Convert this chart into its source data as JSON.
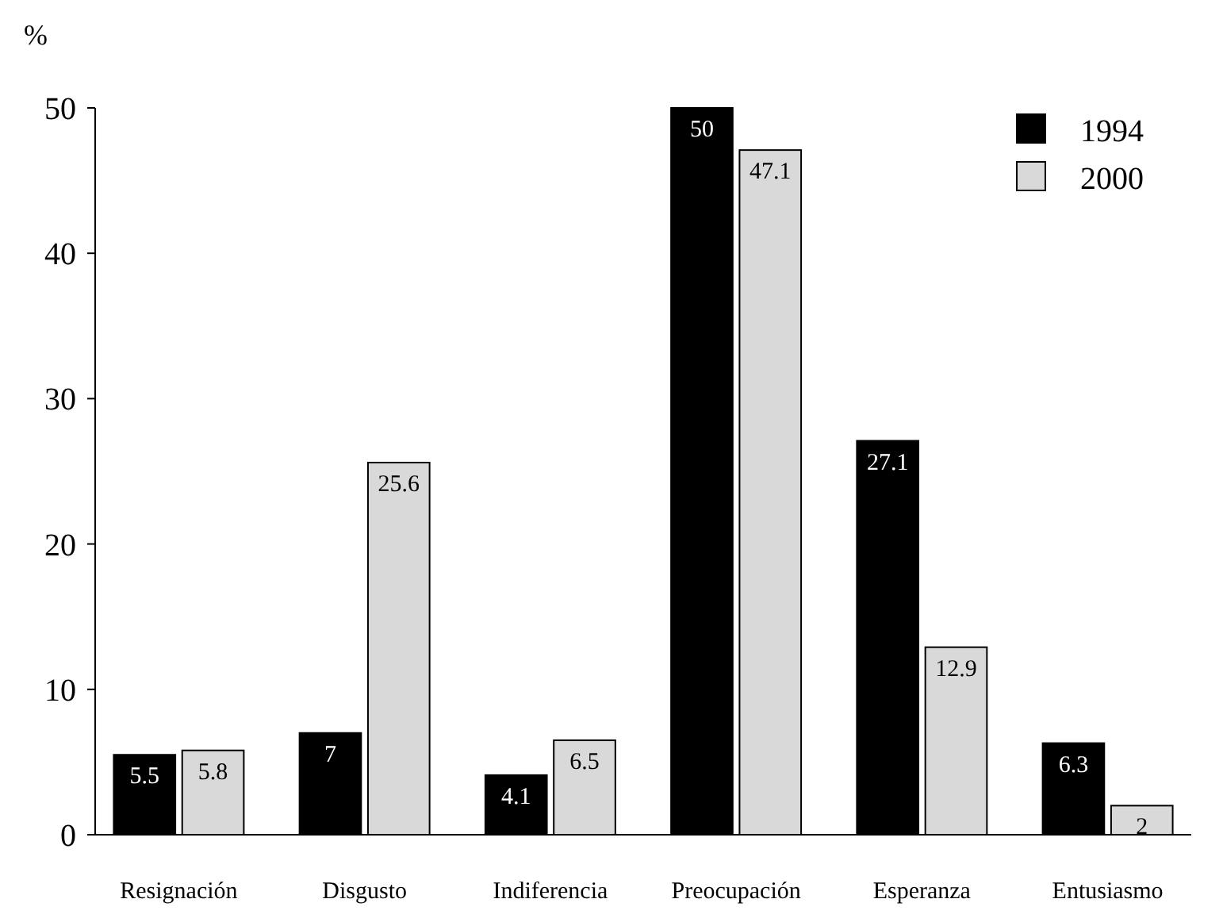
{
  "chart_data": {
    "type": "bar",
    "ylabel": "%",
    "categories": [
      "Resignación",
      "Disgusto",
      "Indiferencia",
      "Preocupación",
      "Esperanza",
      "Entusiasmo"
    ],
    "series": [
      {
        "name": "1994",
        "color": "#000000",
        "values": [
          5.5,
          7,
          4.1,
          50,
          27.1,
          6.3
        ]
      },
      {
        "name": "2000",
        "color": "#d9d9d9",
        "values": [
          5.8,
          25.6,
          6.5,
          47.1,
          12.9,
          2
        ]
      }
    ],
    "ylim": [
      0,
      50
    ],
    "yticks": [
      0,
      10,
      20,
      30,
      40,
      50
    ],
    "data_labels": true,
    "legend": "top right",
    "grid": false
  }
}
